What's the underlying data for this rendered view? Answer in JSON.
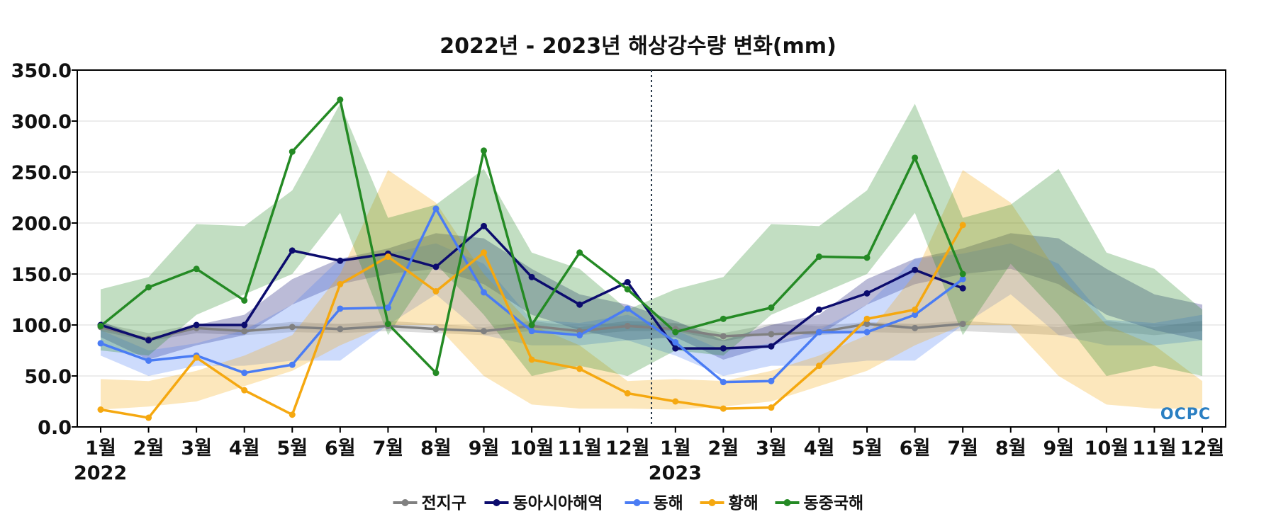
{
  "chart_data": {
    "type": "line",
    "title": "2022년 - 2023년 해상강수량 변화(mm)",
    "xlabel": "",
    "ylabel": "",
    "ylim": [
      0,
      350
    ],
    "yticks": [
      0,
      50,
      100,
      150,
      200,
      250,
      300,
      350
    ],
    "ytick_labels": [
      "0.0",
      "50.0",
      "100.0",
      "150.0",
      "200.0",
      "250.0",
      "300.0",
      "350.0"
    ],
    "categories": [
      "1월",
      "2월",
      "3월",
      "4월",
      "5월",
      "6월",
      "7월",
      "8월",
      "9월",
      "10월",
      "11월",
      "12월",
      "1월",
      "2월",
      "3월",
      "4월",
      "5월",
      "6월",
      "7월",
      "8월",
      "9월",
      "10월",
      "11월",
      "12월"
    ],
    "year_labels": [
      {
        "index": 0,
        "label": "2022"
      },
      {
        "index": 12,
        "label": "2023"
      }
    ],
    "divider_after_index": 11.5,
    "grid": true,
    "legend_position": "bottom-center",
    "watermark": "OCPC",
    "series": [
      {
        "name": "전지구",
        "color": "#808080",
        "values": [
          98,
          86,
          97,
          94,
          98,
          96,
          99,
          96,
          94,
          99,
          94,
          99,
          96,
          89,
          91,
          93,
          101,
          97,
          101,
          null,
          null,
          null,
          null,
          null
        ],
        "band": [
          [
            94,
            102
          ],
          [
            84,
            92
          ],
          [
            92,
            101
          ],
          [
            90,
            99
          ],
          [
            93,
            103
          ],
          [
            92,
            101
          ],
          [
            94,
            104
          ],
          [
            92,
            101
          ],
          [
            90,
            98
          ],
          [
            94,
            104
          ],
          [
            90,
            98
          ],
          [
            94,
            104
          ],
          [
            94,
            102
          ],
          [
            84,
            92
          ],
          [
            92,
            101
          ],
          [
            90,
            99
          ],
          [
            93,
            103
          ],
          [
            92,
            101
          ],
          [
            94,
            104
          ],
          [
            92,
            101
          ],
          [
            90,
            98
          ],
          [
            94,
            104
          ],
          [
            90,
            98
          ],
          [
            94,
            104
          ]
        ]
      },
      {
        "name": "동아시아해역",
        "color": "#0c0c6e",
        "values": [
          100,
          85,
          100,
          100,
          173,
          163,
          170,
          157,
          197,
          147,
          120,
          142,
          77,
          77,
          79,
          115,
          131,
          154,
          136,
          null,
          null,
          null,
          null,
          null
        ],
        "band": [
          [
            88,
            104
          ],
          [
            66,
            85
          ],
          [
            80,
            100
          ],
          [
            90,
            110
          ],
          [
            120,
            145
          ],
          [
            140,
            165
          ],
          [
            150,
            175
          ],
          [
            155,
            190
          ],
          [
            140,
            185
          ],
          [
            110,
            155
          ],
          [
            95,
            130
          ],
          [
            85,
            120
          ],
          [
            88,
            104
          ],
          [
            66,
            85
          ],
          [
            80,
            100
          ],
          [
            90,
            110
          ],
          [
            120,
            145
          ],
          [
            140,
            165
          ],
          [
            150,
            175
          ],
          [
            155,
            190
          ],
          [
            140,
            185
          ],
          [
            110,
            155
          ],
          [
            95,
            130
          ],
          [
            85,
            120
          ]
        ]
      },
      {
        "name": "동해",
        "color": "#4a7cf4",
        "values": [
          82,
          65,
          70,
          53,
          61,
          116,
          117,
          214,
          132,
          94,
          90,
          116,
          83,
          44,
          45,
          93,
          93,
          110,
          145,
          null,
          null,
          null,
          null,
          null
        ],
        "band": [
          [
            70,
            95
          ],
          [
            50,
            75
          ],
          [
            60,
            82
          ],
          [
            60,
            95
          ],
          [
            65,
            120
          ],
          [
            65,
            165
          ],
          [
            100,
            170
          ],
          [
            130,
            180
          ],
          [
            90,
            160
          ],
          [
            80,
            105
          ],
          [
            80,
            102
          ],
          [
            85,
            110
          ],
          [
            70,
            95
          ],
          [
            50,
            75
          ],
          [
            60,
            82
          ],
          [
            60,
            95
          ],
          [
            65,
            120
          ],
          [
            65,
            165
          ],
          [
            100,
            170
          ],
          [
            130,
            180
          ],
          [
            90,
            160
          ],
          [
            80,
            105
          ],
          [
            80,
            102
          ],
          [
            85,
            110
          ]
        ]
      },
      {
        "name": "황해",
        "color": "#f5a810",
        "values": [
          17,
          9,
          68,
          36,
          12,
          140,
          167,
          133,
          171,
          66,
          57,
          33,
          25,
          18,
          19,
          60,
          106,
          115,
          198,
          null,
          null,
          null,
          null,
          null
        ],
        "band": [
          [
            17,
            47
          ],
          [
            20,
            45
          ],
          [
            25,
            55
          ],
          [
            40,
            70
          ],
          [
            55,
            90
          ],
          [
            80,
            150
          ],
          [
            100,
            252
          ],
          [
            100,
            220
          ],
          [
            50,
            150
          ],
          [
            22,
            100
          ],
          [
            18,
            80
          ],
          [
            18,
            45
          ],
          [
            17,
            47
          ],
          [
            20,
            45
          ],
          [
            25,
            55
          ],
          [
            40,
            70
          ],
          [
            55,
            90
          ],
          [
            80,
            150
          ],
          [
            100,
            252
          ],
          [
            100,
            220
          ],
          [
            50,
            150
          ],
          [
            22,
            100
          ],
          [
            18,
            80
          ],
          [
            18,
            45
          ]
        ]
      },
      {
        "name": "동중국해",
        "color": "#248a24",
        "values": [
          99,
          137,
          155,
          124,
          270,
          321,
          101,
          53,
          271,
          100,
          171,
          135,
          93,
          106,
          117,
          167,
          166,
          264,
          150,
          null,
          null,
          null,
          null,
          null
        ],
        "band": [
          [
            75,
            135
          ],
          [
            70,
            147
          ],
          [
            110,
            199
          ],
          [
            130,
            197
          ],
          [
            150,
            232
          ],
          [
            210,
            317
          ],
          [
            90,
            205
          ],
          [
            160,
            218
          ],
          [
            110,
            253
          ],
          [
            50,
            171
          ],
          [
            60,
            155
          ],
          [
            50,
            115
          ],
          [
            75,
            135
          ],
          [
            70,
            147
          ],
          [
            110,
            199
          ],
          [
            130,
            197
          ],
          [
            150,
            232
          ],
          [
            210,
            317
          ],
          [
            90,
            205
          ],
          [
            160,
            218
          ],
          [
            110,
            253
          ],
          [
            50,
            171
          ],
          [
            60,
            155
          ],
          [
            50,
            115
          ]
        ]
      }
    ]
  }
}
